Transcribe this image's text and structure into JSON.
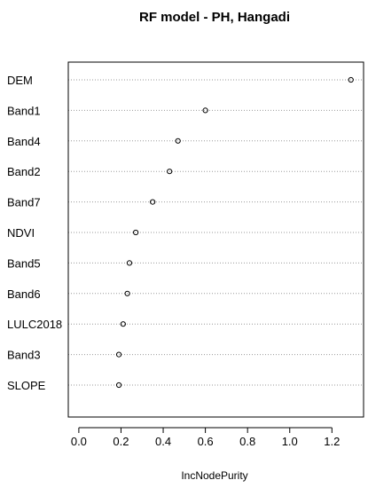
{
  "chart_data": {
    "type": "scatter",
    "title": "RF model - PH, Hangadi",
    "xlabel": "IncNodePurity",
    "ylabel": "",
    "xlim": [
      -0.05,
      1.35
    ],
    "xticks": [
      "0.0",
      "0.2",
      "0.4",
      "0.6",
      "0.8",
      "1.0",
      "1.2"
    ],
    "xtick_values": [
      0.0,
      0.2,
      0.4,
      0.6,
      0.8,
      1.0,
      1.2
    ],
    "grid": "horizontal dotted",
    "categories": [
      "DEM",
      "Band1",
      "Band4",
      "Band2",
      "Band7",
      "NDVI",
      "Band5",
      "Band6",
      "LULC2018",
      "Band3",
      "SLOPE"
    ],
    "values": [
      1.29,
      0.6,
      0.47,
      0.43,
      0.35,
      0.27,
      0.24,
      0.23,
      0.21,
      0.19,
      0.19
    ],
    "marker": "open circle",
    "colors": {
      "points": "#000000",
      "grid": "#9a9a9a",
      "frame": "#000000"
    }
  }
}
